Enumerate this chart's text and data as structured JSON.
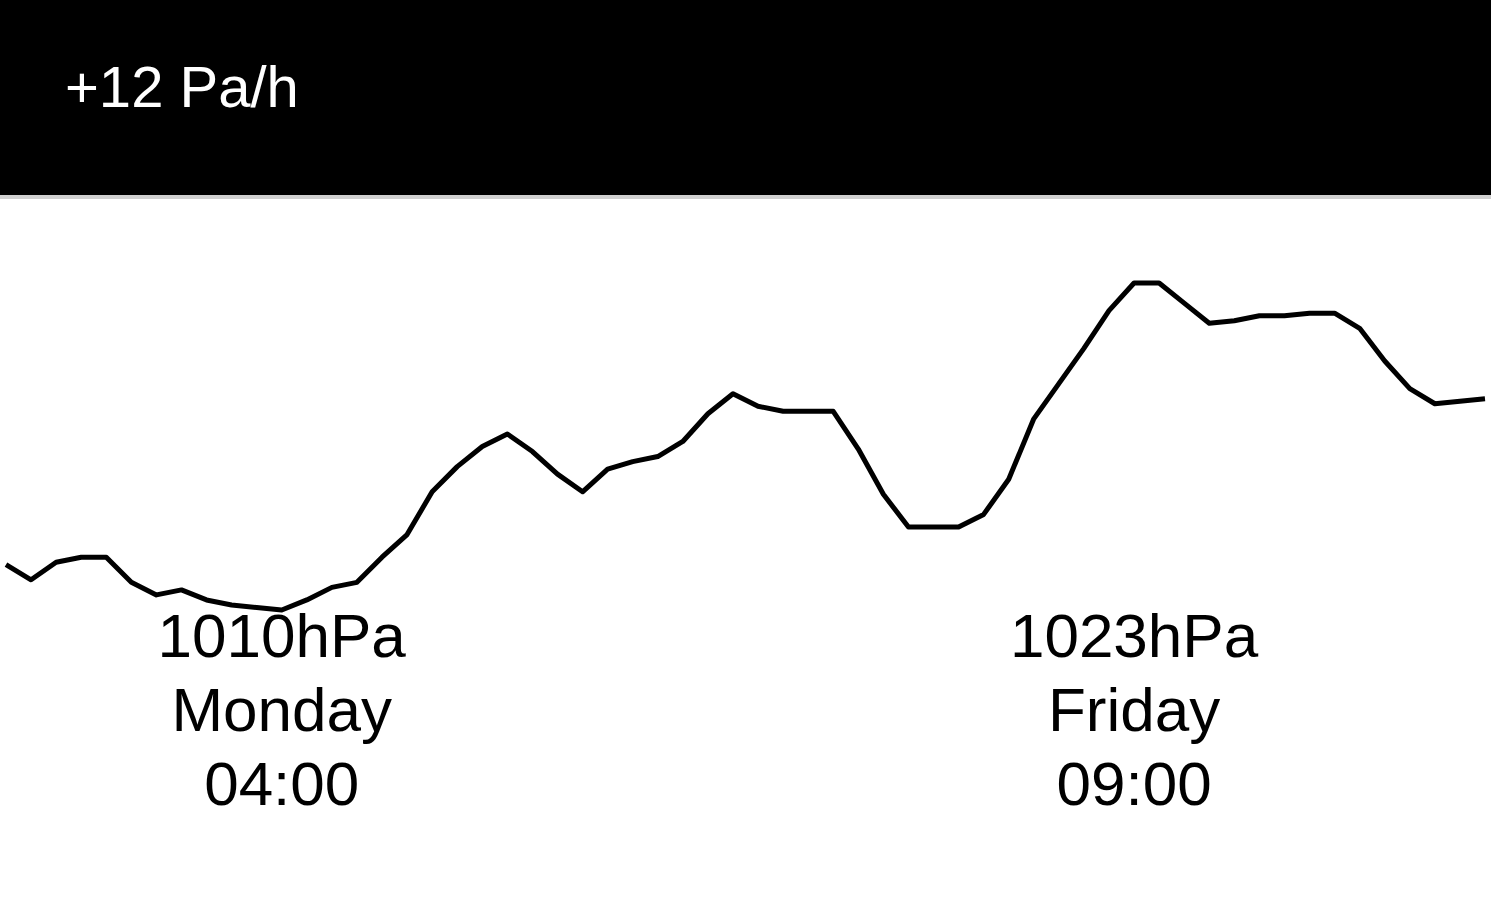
{
  "chart_data": {
    "type": "line",
    "title": "+12 Pa/h",
    "categories": [
      null,
      null,
      null,
      null,
      null,
      null,
      null,
      null,
      null,
      null,
      null,
      null,
      null,
      null,
      null,
      null,
      null,
      null,
      null,
      null,
      null,
      null,
      null,
      null,
      null,
      null,
      null,
      null,
      null,
      null,
      null,
      null,
      null,
      null,
      null,
      null,
      null,
      null,
      null,
      null,
      null,
      null,
      null,
      null,
      null,
      null,
      null,
      null,
      null,
      null,
      null,
      null,
      null,
      null,
      null,
      null,
      null,
      null,
      null,
      null
    ],
    "series": [
      {
        "color": "#000000",
        "values": [
          1011.8,
          1011.2,
          1011.9,
          1012.1,
          1012.1,
          1011.1,
          1010.6,
          1010.8,
          1010.4,
          1010.2,
          1010.1,
          1010.0,
          1010.4,
          1010.9,
          1011.1,
          1012.1,
          1013.0,
          1014.7,
          1015.7,
          1016.5,
          1017.0,
          1016.3,
          1015.4,
          1014.7,
          1015.6,
          1015.9,
          1016.1,
          1016.7,
          1017.8,
          1018.6,
          1018.1,
          1017.9,
          1017.9,
          1017.9,
          1016.4,
          1014.6,
          1013.3,
          1013.3,
          1013.3,
          1013.8,
          1015.2,
          1017.6,
          1019.0,
          1020.4,
          1021.9,
          1023.0,
          1023.0,
          1022.2,
          1021.4,
          1021.5,
          1021.7,
          1021.7,
          1021.8,
          1021.8,
          1021.2,
          1019.9,
          1018.8,
          1018.2,
          1018.3,
          1018.4
        ],
        "value_labels": [
          null,
          null,
          null,
          null,
          null,
          null,
          null,
          null,
          null,
          null,
          null,
          "1010hPa\nMonday\n04:00",
          null,
          null,
          null,
          null,
          null,
          null,
          null,
          null,
          null,
          null,
          null,
          null,
          null,
          null,
          null,
          null,
          null,
          null,
          null,
          null,
          null,
          null,
          null,
          null,
          null,
          null,
          null,
          null,
          null,
          null,
          null,
          null,
          null,
          "1023hPa\nFriday\n09:00",
          null,
          null,
          null,
          null,
          null,
          null,
          null,
          null,
          null,
          null,
          null,
          null,
          null,
          null
        ]
      }
    ]
  }
}
